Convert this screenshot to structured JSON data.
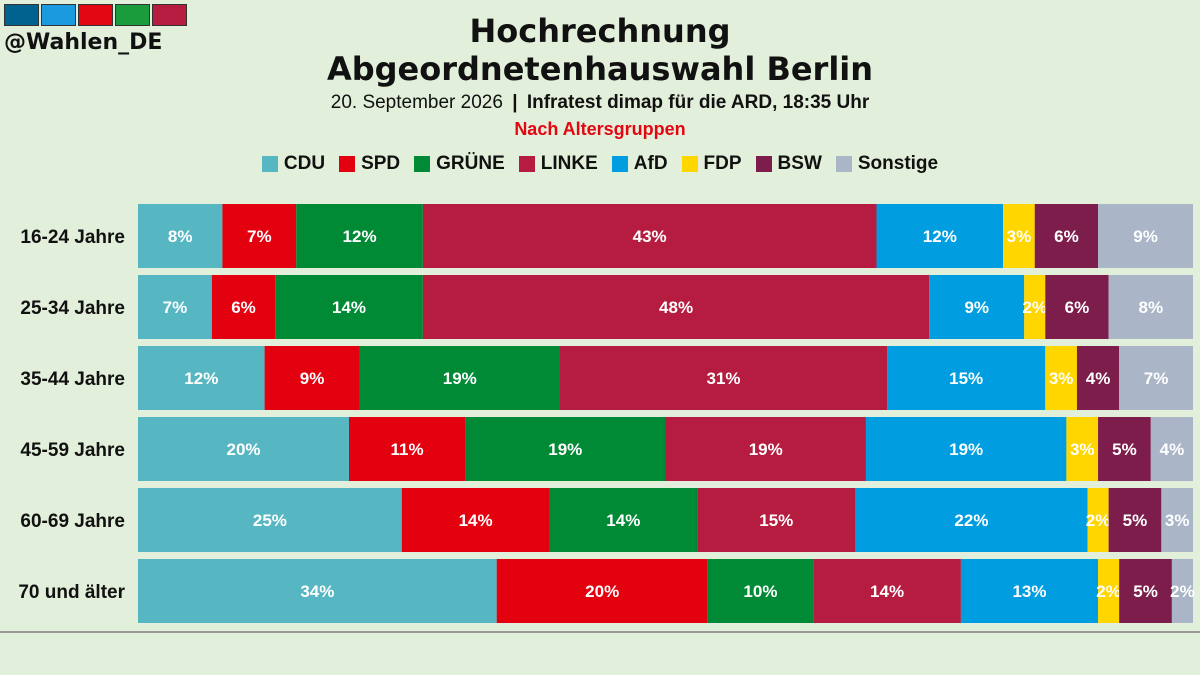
{
  "header": {
    "handle": "@Wahlen_DE",
    "logo_colors": [
      "#00628f",
      "#1c9ae0",
      "#e30613",
      "#1a9b3c",
      "#b51c3f"
    ],
    "title_line1": "Hochrechnung",
    "title_line2": "Abgeordnetenhauswahl Berlin",
    "date": "20. September 2026",
    "separator": "|",
    "source": "Infratest dimap für die ARD, 18:35 Uhr",
    "note": "Nach Altersgruppen"
  },
  "chart_data": {
    "type": "bar",
    "orientation": "horizontal",
    "stacked": true,
    "unit": "%",
    "categories": [
      "16-24 Jahre",
      "25-34 Jahre",
      "35-44 Jahre",
      "45-59 Jahre",
      "60-69 Jahre",
      "70 und älter"
    ],
    "series": [
      {
        "name": "CDU",
        "color": "#56b7c3",
        "values": [
          8,
          7,
          12,
          20,
          25,
          34
        ]
      },
      {
        "name": "SPD",
        "color": "#e3000f",
        "values": [
          7,
          6,
          9,
          11,
          14,
          20
        ]
      },
      {
        "name": "GRÜNE",
        "color": "#008a36",
        "values": [
          12,
          14,
          19,
          19,
          14,
          10
        ]
      },
      {
        "name": "LINKE",
        "color": "#b51c3f",
        "values": [
          43,
          48,
          31,
          19,
          15,
          14
        ]
      },
      {
        "name": "AfD",
        "color": "#009ee0",
        "values": [
          12,
          9,
          15,
          19,
          22,
          13
        ]
      },
      {
        "name": "FDP",
        "color": "#ffd600",
        "values": [
          3,
          2,
          3,
          3,
          2,
          2
        ]
      },
      {
        "name": "BSW",
        "color": "#7c1d4c",
        "values": [
          6,
          6,
          4,
          5,
          5,
          5
        ]
      },
      {
        "name": "Sonstige",
        "color": "#aab5c8",
        "values": [
          9,
          8,
          7,
          4,
          3,
          2
        ]
      }
    ],
    "legend_position": "top"
  }
}
